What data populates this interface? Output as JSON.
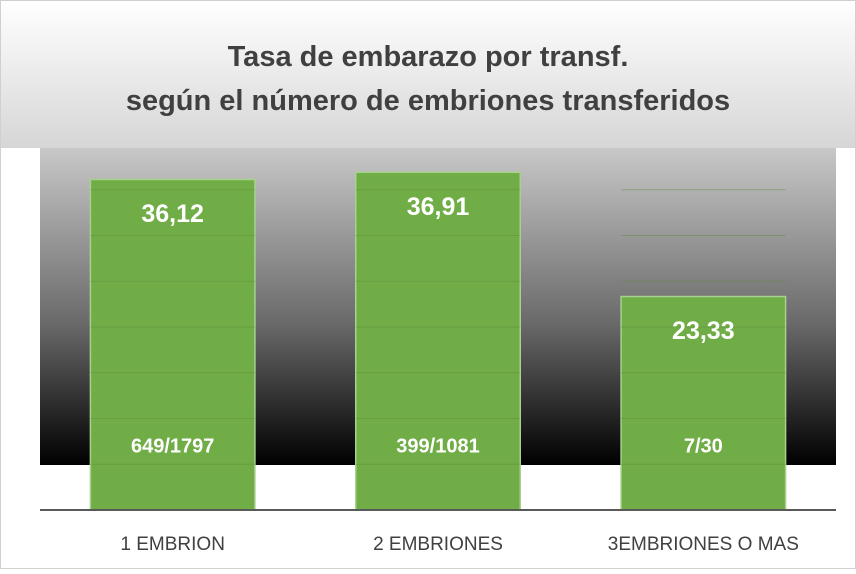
{
  "chart_data": {
    "type": "bar",
    "title": "Tasa de embarazo por transf. según el número de embriones transferidos",
    "categories": [
      "1 EMBRION",
      "2 EMBRIONES",
      "3EMBRIONES O MAS"
    ],
    "values": [
      36.12,
      36.91,
      23.33
    ],
    "value_labels": [
      "36,12",
      "36,91",
      "23,33"
    ],
    "annotations": [
      "649/1797",
      "399/1081",
      "7/30"
    ],
    "color": "#70ad47",
    "ylim": [
      0,
      40
    ],
    "yticks": [
      0,
      5,
      10,
      15,
      20,
      25,
      30,
      35,
      40
    ],
    "ytick_labels_visible": false,
    "grid": true
  }
}
